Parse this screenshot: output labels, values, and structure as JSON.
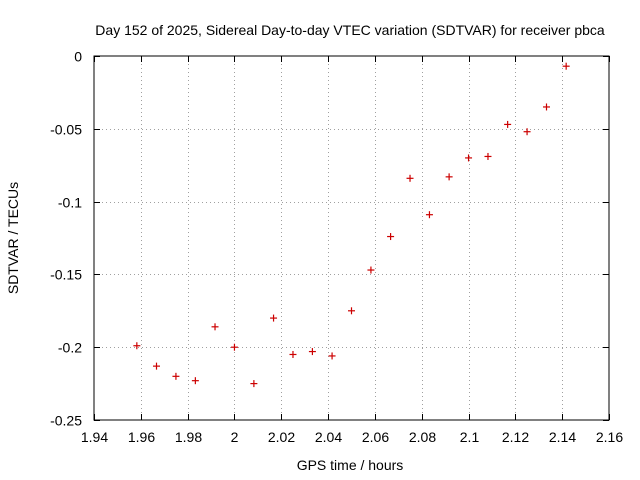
{
  "chart_data": {
    "type": "scatter",
    "title": "Day 152 of 2025, Sidereal Day-to-day VTEC variation (SDTVAR) for receiver pbca",
    "xlabel": "GPS time / hours",
    "ylabel": "SDTVAR / TECUs",
    "xlim": [
      1.94,
      2.16
    ],
    "ylim": [
      -0.25,
      0
    ],
    "xticks": [
      "1.94",
      "1.96",
      "1.98",
      "2",
      "2.02",
      "2.04",
      "2.06",
      "2.08",
      "2.1",
      "2.12",
      "2.14",
      "2.16"
    ],
    "yticks": [
      "0",
      "-0.05",
      "-0.1",
      "-0.15",
      "-0.2",
      "-0.25"
    ],
    "grid": true,
    "marker_color": "#cc0000",
    "series": [
      {
        "name": "SDTVAR",
        "x": [
          1.9583,
          1.9667,
          1.975,
          1.9833,
          1.9917,
          2.0,
          2.0083,
          2.0167,
          2.025,
          2.0333,
          2.0417,
          2.05,
          2.0583,
          2.0667,
          2.075,
          2.0833,
          2.0917,
          2.1,
          2.1083,
          2.1167,
          2.125,
          2.1333,
          2.1417
        ],
        "y": [
          -0.199,
          -0.213,
          -0.22,
          -0.223,
          -0.186,
          -0.2,
          -0.225,
          -0.18,
          -0.205,
          -0.203,
          -0.206,
          -0.175,
          -0.147,
          -0.124,
          -0.084,
          -0.109,
          -0.083,
          -0.07,
          -0.069,
          -0.047,
          -0.052,
          -0.035,
          -0.007
        ]
      }
    ]
  }
}
